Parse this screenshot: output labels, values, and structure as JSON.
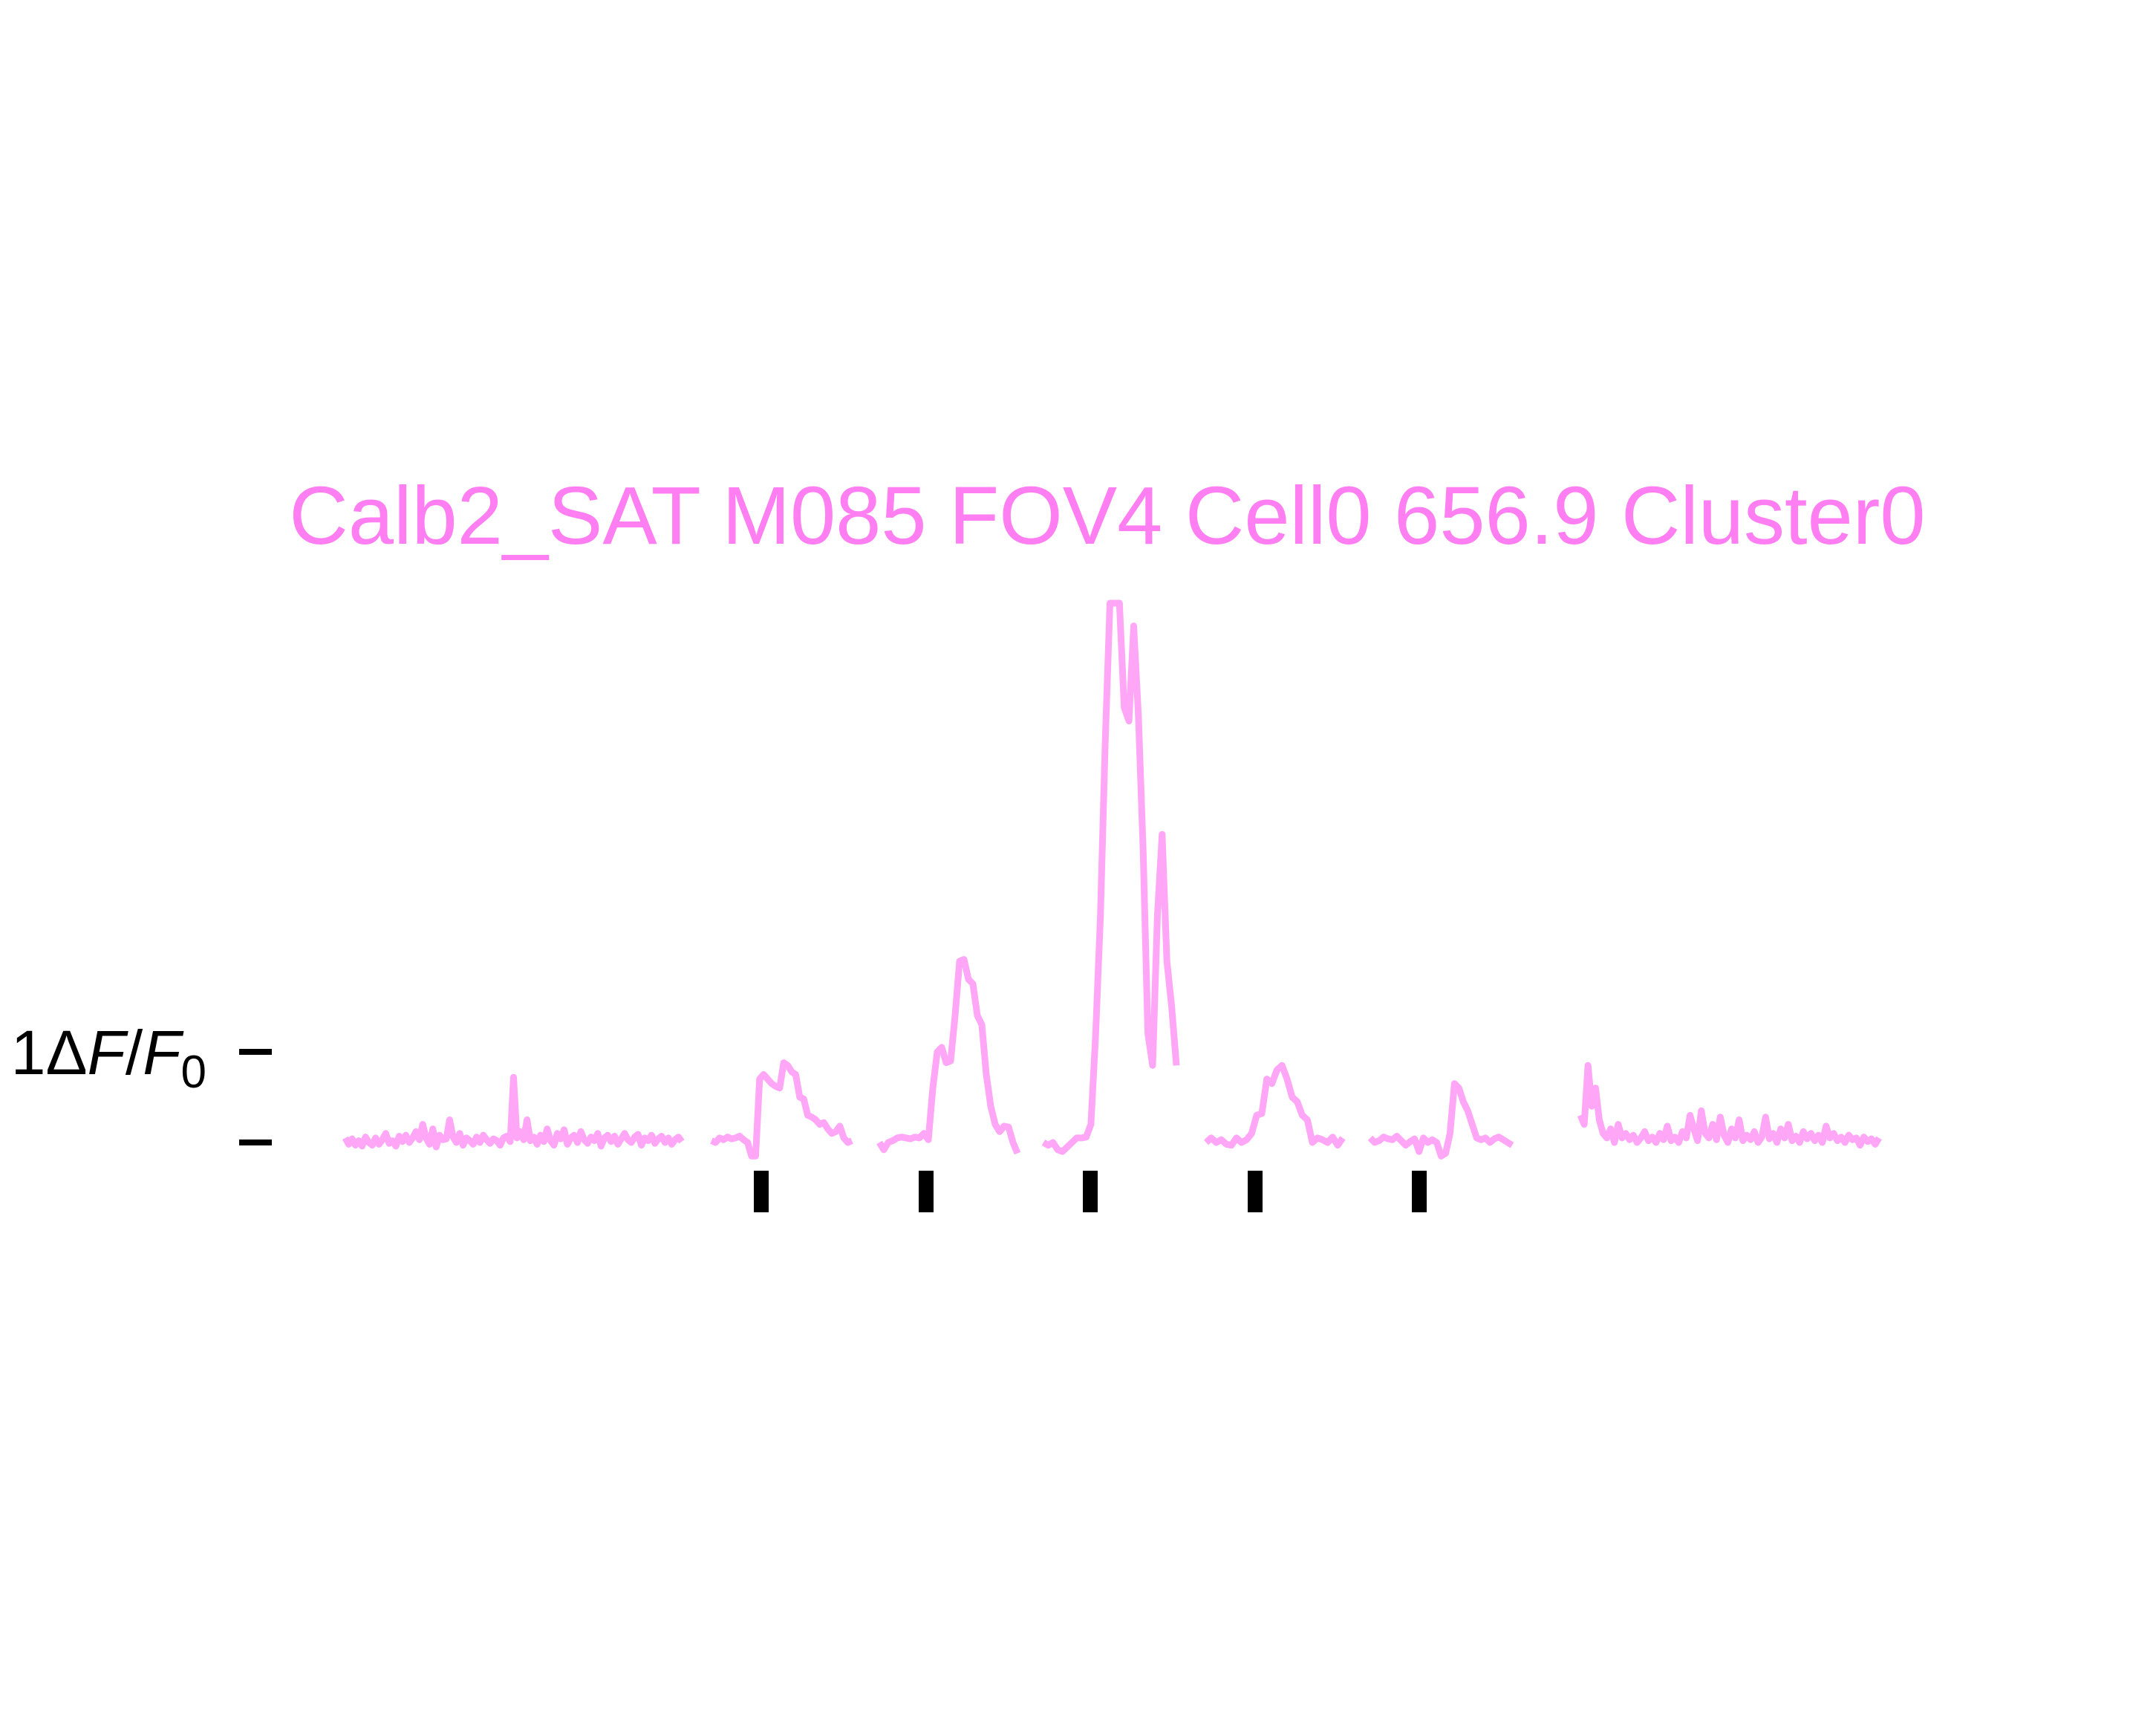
{
  "colors": {
    "accent": "#ff7ff2",
    "trace": "#ffa6f7",
    "ink": "#000000",
    "background": "#ffffff"
  },
  "chart_data": {
    "type": "line",
    "title": "Calb2_SAT M085 FOV4 Cell0 656.9 Cluster0",
    "ylabel_text": "1ΔF/F0",
    "ylabel_parts": {
      "scale": "1",
      "delta": "Δ",
      "F": "F",
      "slash": "/",
      "F0": "F",
      "sub": "0"
    },
    "scale_bar": {
      "size": 1,
      "unit": "ΔF/F0"
    },
    "grid": false,
    "legend": "none",
    "ylim": [
      -0.35,
      6.0
    ],
    "baseline_segments": [
      {
        "name": "baseline-pre",
        "values": [
          0.05,
          -0.02,
          0.04,
          -0.03,
          0.02,
          -0.04,
          0.06,
          0.0,
          -0.03,
          0.05,
          -0.02,
          0.03,
          0.1,
          -0.01,
          0.02,
          -0.04,
          0.07,
          0.01,
          0.08,
          0.0,
          0.05,
          0.12,
          0.03,
          0.2,
          0.05,
          -0.02,
          0.15,
          -0.05,
          0.08,
          0.03,
          0.04,
          0.25,
          0.06,
          0.0,
          0.1,
          -0.03,
          0.05,
          0.02,
          -0.02,
          0.06,
          0.0,
          0.08,
          0.03,
          -0.01,
          0.04,
          0.02,
          -0.03,
          0.05,
          0.07,
          0.01,
          0.72,
          0.05,
          0.12,
          0.03,
          0.25,
          0.02,
          0.06,
          -0.02,
          0.08,
          0.01,
          0.15,
          0.02,
          -0.03,
          0.1,
          0.04,
          0.14,
          -0.02,
          0.05,
          0.08,
          0.0,
          0.12,
          0.03,
          -0.01,
          0.06,
          0.02,
          0.1,
          -0.04,
          0.05,
          0.08,
          0.01,
          0.07,
          -0.02,
          0.04,
          0.1,
          0.03,
          0.0,
          0.06,
          0.09,
          -0.03,
          0.05,
          0.02,
          0.08,
          -0.01,
          0.04,
          0.07,
          0.0,
          0.05,
          -0.02,
          0.03,
          0.06,
          0.01
        ]
      },
      {
        "name": "baseline-post",
        "values": [
          0.3,
          0.2,
          0.85,
          0.4,
          0.6,
          0.25,
          0.1,
          0.05,
          0.15,
          0.0,
          0.2,
          0.05,
          0.1,
          0.03,
          0.08,
          0.0,
          0.05,
          0.12,
          0.02,
          0.06,
          0.0,
          0.1,
          0.03,
          0.18,
          0.02,
          0.06,
          0.0,
          0.12,
          0.05,
          0.3,
          0.15,
          0.02,
          0.35,
          0.1,
          0.05,
          0.2,
          0.03,
          0.28,
          0.08,
          0.0,
          0.15,
          0.05,
          0.25,
          0.02,
          0.08,
          0.03,
          0.12,
          0.0,
          0.06,
          0.28,
          0.04,
          0.1,
          0.0,
          0.15,
          0.05,
          0.2,
          0.02,
          0.07,
          0.0,
          0.12,
          0.04,
          0.1,
          0.02,
          0.08,
          0.0,
          0.18,
          0.05,
          0.1,
          0.02,
          0.06,
          0.0,
          0.08,
          0.03,
          0.05,
          -0.03,
          0.06,
          0.01,
          0.04,
          -0.02,
          0.05
        ]
      }
    ],
    "trials": [
      {
        "name": "trial-1",
        "values": [
          0.02,
          0.0,
          0.05,
          0.03,
          0.06,
          0.04,
          0.05,
          0.07,
          0.03,
          0.0,
          -0.15,
          -0.15,
          0.7,
          0.75,
          0.7,
          0.65,
          0.62,
          0.6,
          0.88,
          0.85,
          0.78,
          0.75,
          0.5,
          0.48,
          0.3,
          0.28,
          0.25,
          0.2,
          0.22,
          0.15,
          0.1,
          0.12,
          0.18,
          0.05,
          0.0,
          0.02
        ]
      },
      {
        "name": "trial-2",
        "values": [
          0.0,
          -0.08,
          0.0,
          0.02,
          0.05,
          0.06,
          0.05,
          0.04,
          0.06,
          0.05,
          0.1,
          0.03,
          0.6,
          1.0,
          1.05,
          0.88,
          0.9,
          1.4,
          2.0,
          2.02,
          1.8,
          1.75,
          1.4,
          1.3,
          0.75,
          0.4,
          0.2,
          0.12,
          0.18,
          0.17,
          0.0,
          -0.12
        ]
      },
      {
        "name": "trial-3",
        "values": [
          0.0,
          -0.03,
          0.0,
          -0.08,
          -0.1,
          -0.05,
          0.0,
          0.05,
          0.05,
          0.06,
          0.2,
          1.2,
          2.5,
          4.4,
          6.0,
          6.0,
          6.0,
          4.8,
          4.65,
          5.7,
          4.7,
          3.2,
          1.2,
          0.85,
          2.5,
          3.4,
          2.0,
          1.5,
          0.85
        ]
      },
      {
        "name": "trial-4",
        "values": [
          0.0,
          0.05,
          0.0,
          0.03,
          -0.02,
          -0.03,
          0.05,
          0.0,
          0.03,
          0.1,
          0.3,
          0.32,
          0.7,
          0.65,
          0.8,
          0.85,
          0.7,
          0.5,
          0.45,
          0.3,
          0.25,
          0.0,
          0.05,
          0.03,
          0.0,
          0.06,
          -0.03,
          0.05
        ]
      },
      {
        "name": "trial-5",
        "values": [
          0.05,
          0.0,
          0.02,
          0.06,
          0.04,
          0.03,
          0.07,
          0.02,
          -0.03,
          0.01,
          0.04,
          -0.1,
          0.05,
          0.0,
          0.03,
          0.0,
          -0.15,
          -0.12,
          0.1,
          0.65,
          0.6,
          0.45,
          0.35,
          0.2,
          0.05,
          0.03,
          0.05,
          0.0,
          0.04,
          0.06,
          0.03,
          0.0,
          -0.03
        ]
      }
    ],
    "stim_markers": 5
  }
}
